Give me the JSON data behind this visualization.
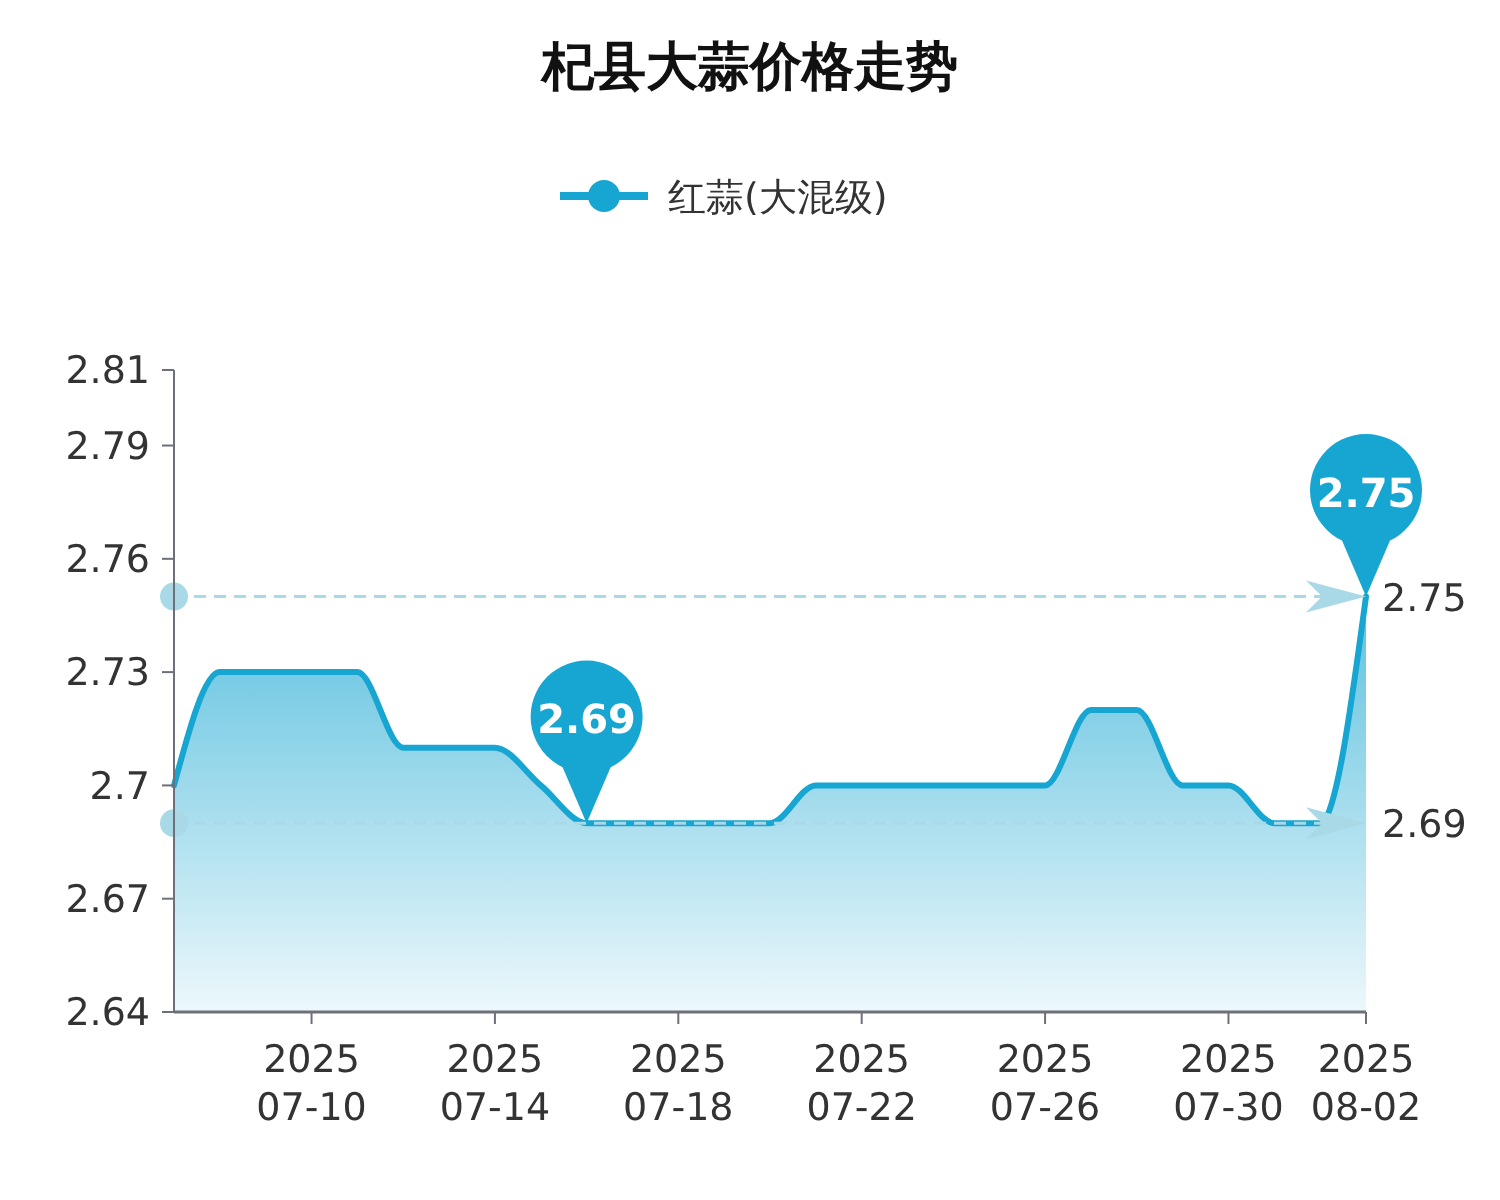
{
  "chart_data": {
    "type": "area",
    "title": "杞县大蒜价格走势",
    "legend": "top",
    "x": [
      "2025-07-07",
      "2025-07-08",
      "2025-07-09",
      "2025-07-10",
      "2025-07-11",
      "2025-07-12",
      "2025-07-13",
      "2025-07-14",
      "2025-07-15",
      "2025-07-16",
      "2025-07-17",
      "2025-07-18",
      "2025-07-19",
      "2025-07-20",
      "2025-07-21",
      "2025-07-22",
      "2025-07-23",
      "2025-07-24",
      "2025-07-25",
      "2025-07-26",
      "2025-07-27",
      "2025-07-28",
      "2025-07-29",
      "2025-07-30",
      "2025-07-31",
      "2025-08-01",
      "2025-08-02"
    ],
    "series": [
      {
        "name": "红蒜(大混级)",
        "color": "#17a6d1",
        "values": [
          2.7,
          2.73,
          2.73,
          2.73,
          2.73,
          2.71,
          2.71,
          2.71,
          2.7,
          2.69,
          2.69,
          2.69,
          2.69,
          2.69,
          2.7,
          2.7,
          2.7,
          2.7,
          2.7,
          2.7,
          2.72,
          2.72,
          2.7,
          2.7,
          2.69,
          2.69,
          2.75
        ]
      }
    ],
    "xlim": [
      "2025-07-07",
      "2025-08-02"
    ],
    "xticks": [
      {
        "value": "2025-07-10",
        "label": "2025\n07-10"
      },
      {
        "value": "2025-07-14",
        "label": "2025\n07-14"
      },
      {
        "value": "2025-07-18",
        "label": "2025\n07-18"
      },
      {
        "value": "2025-07-22",
        "label": "2025\n07-22"
      },
      {
        "value": "2025-07-26",
        "label": "2025\n07-26"
      },
      {
        "value": "2025-07-30",
        "label": "2025\n07-30"
      },
      {
        "value": "2025-08-02",
        "label": "2025\n08-02"
      }
    ],
    "ylim": [
      2.64,
      2.81
    ],
    "yticks": [
      2.64,
      2.67,
      2.7,
      2.73,
      2.76,
      2.79,
      2.81
    ],
    "ref_lines": [
      {
        "axis": "y",
        "value": 2.75,
        "label": "2.75",
        "color": "#a9d9e6",
        "line_style": "dashed"
      },
      {
        "axis": "y",
        "value": 2.69,
        "label": "2.69",
        "color": "#a9d9e6",
        "line_style": "dashed"
      }
    ],
    "annotations": [
      {
        "text": "2.69",
        "x": "2025-07-16",
        "y": 2.69
      },
      {
        "text": "2.75",
        "x": "2025-08-02",
        "y": 2.75
      }
    ]
  }
}
